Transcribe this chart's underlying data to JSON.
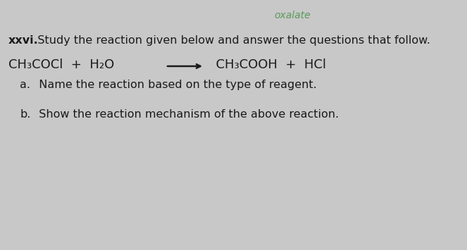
{
  "background_color": "#c8c8c8",
  "handwriting_top": "oxalate",
  "handwriting_color": "#5a9a5a",
  "question_number": "xxvi.",
  "question_text": "   Study the reaction given below and answer the questions that follow.",
  "reaction_left": "CH₃COCl  +  H₂O",
  "arrow": "⟶",
  "reaction_right": "  CH₃COOH  +  HCl",
  "part_a_label": "a.",
  "part_a_text": "  Name the reaction based on the type of reagent.",
  "part_b_label": "b.",
  "part_b_text": "  Show the reaction mechanism of the above reaction.",
  "font_size_question": 11.5,
  "font_size_reaction": 13,
  "font_size_parts": 11.5,
  "text_color": "#1a1a1a"
}
